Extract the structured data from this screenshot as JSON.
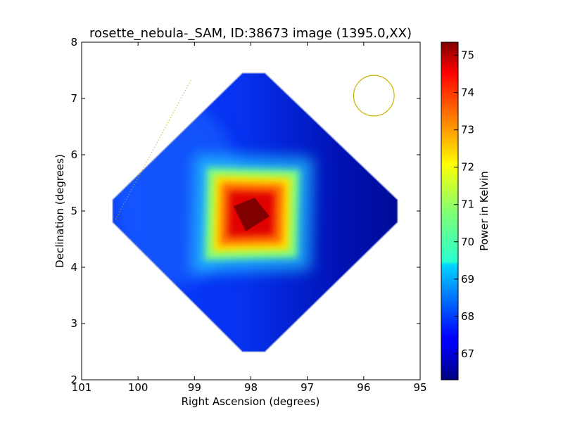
{
  "chart_data": {
    "type": "heatmap",
    "title": "rosette_nebula-_SAM, ID:38673 image (1395.0,XX)",
    "xlabel": "Right Ascension (degrees)",
    "ylabel": "Declination (degrees)",
    "xlim": [
      101,
      95
    ],
    "ylim": [
      2,
      8
    ],
    "x_ticks": [
      "101",
      "100",
      "99",
      "98",
      "97",
      "96",
      "95"
    ],
    "y_ticks": [
      "2",
      "3",
      "4",
      "5",
      "6",
      "7",
      "8"
    ],
    "colorbar": {
      "label": "Power in Kelvin",
      "range": [
        66.3,
        75.35
      ],
      "ticks": [
        "67",
        "68",
        "69",
        "70",
        "71",
        "72",
        "73",
        "74",
        "75"
      ],
      "colormap": "jet"
    },
    "coverage_region": {
      "shape": "diamond",
      "top_dec": 7.45,
      "bottom_dec": 2.5,
      "left_ra": 100.45,
      "right_ra": 95.4,
      "center_ra": 97.95,
      "center_dec": 5.0
    },
    "hotspot": {
      "peak_ra": 98.0,
      "peak_dec": 4.95,
      "peak_value": 75.3,
      "background_value": 67.3
    },
    "beam_circle": {
      "ra": 95.82,
      "dec": 7.05,
      "radius_deg": 0.36,
      "color": "#c8b400"
    },
    "dotted_line": {
      "from": [
        100.4,
        4.85
      ],
      "to": [
        99.05,
        7.35
      ],
      "color": "#b8b000"
    }
  }
}
